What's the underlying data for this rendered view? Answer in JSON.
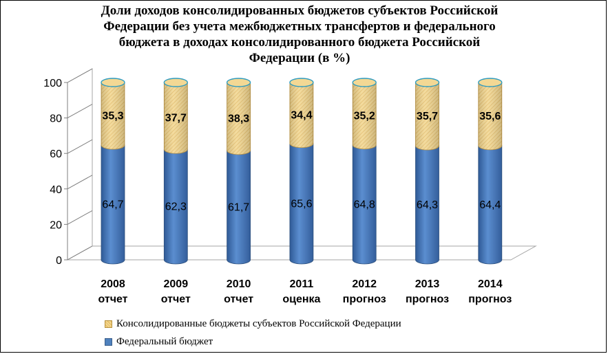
{
  "chart_data": {
    "type": "bar",
    "stacked": true,
    "three_d": true,
    "title_lines": [
      "Доли доходов консолидированных бюджетов субъектов Российской",
      "Федерации без учета межбюджетных трансфертов  и федерального",
      "бюджета в доходах консолидированного бюджета Российской",
      "Федерации (в %)"
    ],
    "categories": [
      [
        "2008",
        "отчет"
      ],
      [
        "2009",
        "отчет"
      ],
      [
        "2010",
        "отчет"
      ],
      [
        "2011",
        "оценка"
      ],
      [
        "2012",
        "прогноз"
      ],
      [
        "2013",
        "прогноз"
      ],
      [
        "2014",
        "прогноз"
      ]
    ],
    "series": [
      {
        "name": "Федеральный бюджет",
        "values": [
          64.7,
          62.3,
          61.7,
          65.6,
          64.8,
          64.3,
          64.4
        ],
        "labels": [
          "64,7",
          "62,3",
          "61,7",
          "65,6",
          "64,8",
          "64,3",
          "64,4"
        ],
        "color": "#4F81BD"
      },
      {
        "name": "Консолидированные бюджеты субъектов Российской Федерации",
        "values": [
          35.3,
          37.7,
          38.3,
          34.4,
          35.2,
          35.7,
          35.6
        ],
        "labels": [
          "35,3",
          "37,7",
          "38,3",
          "34,4",
          "35,2",
          "35,7",
          "35,6"
        ],
        "color": "#F2D58E"
      }
    ],
    "ylim": [
      0,
      100
    ],
    "yticks": [
      "0",
      "20",
      "40",
      "60",
      "80",
      "100"
    ],
    "grid": false,
    "legend_position": "bottom"
  }
}
